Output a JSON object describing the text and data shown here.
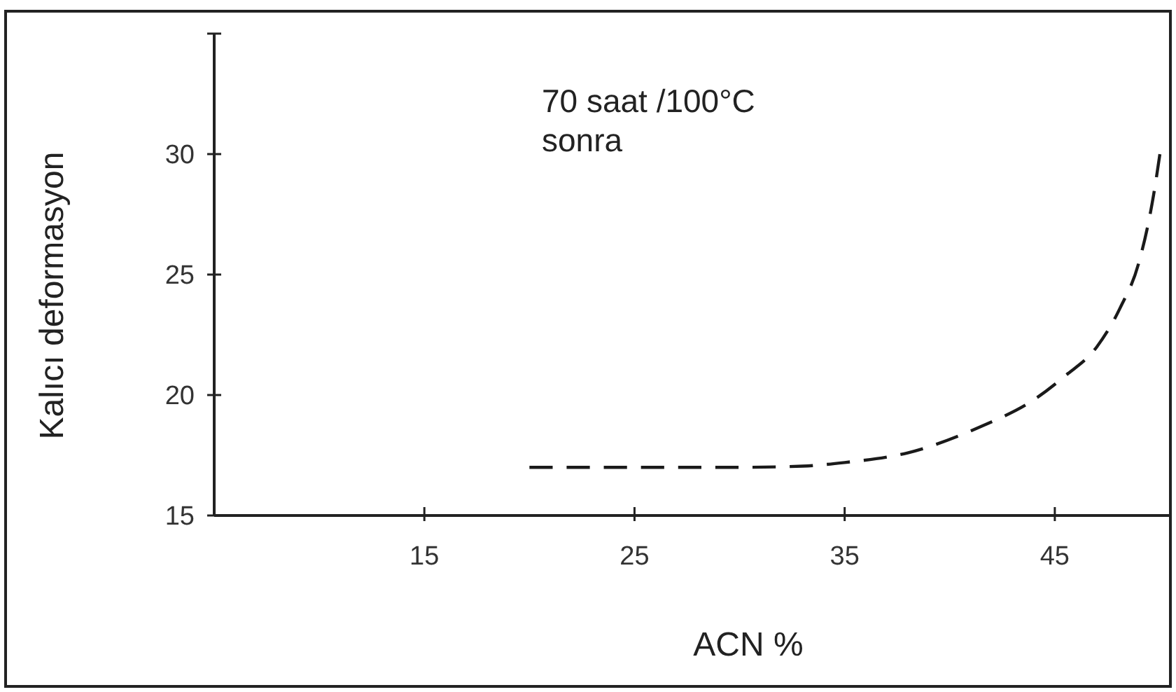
{
  "chart_data": {
    "type": "line",
    "xlabel": "ACN %",
    "ylabel": "Kalıcı deformasyon",
    "annotations": [
      "70 saat /100°C\nsonra"
    ],
    "x": [
      20,
      25,
      30,
      33,
      35,
      38,
      41.5,
      44,
      45.5,
      47,
      48.1,
      49,
      49.7,
      50
    ],
    "series": [
      {
        "color": "#1a1a1a",
        "line_style": "dashed",
        "values": [
          17,
          17,
          17,
          17.05,
          17.2,
          17.6,
          18.7,
          19.8,
          20.8,
          22,
          23.6,
          25.5,
          28.3,
          30
        ]
      }
    ],
    "xlim": [
      5,
      50.5
    ],
    "xticks": [
      15,
      25,
      35,
      45
    ],
    "ylim": [
      15,
      35
    ],
    "yticks": [
      15,
      20,
      25,
      30,
      {
        "value": 35,
        "label": null
      }
    ],
    "grid": false,
    "marker": "none"
  }
}
